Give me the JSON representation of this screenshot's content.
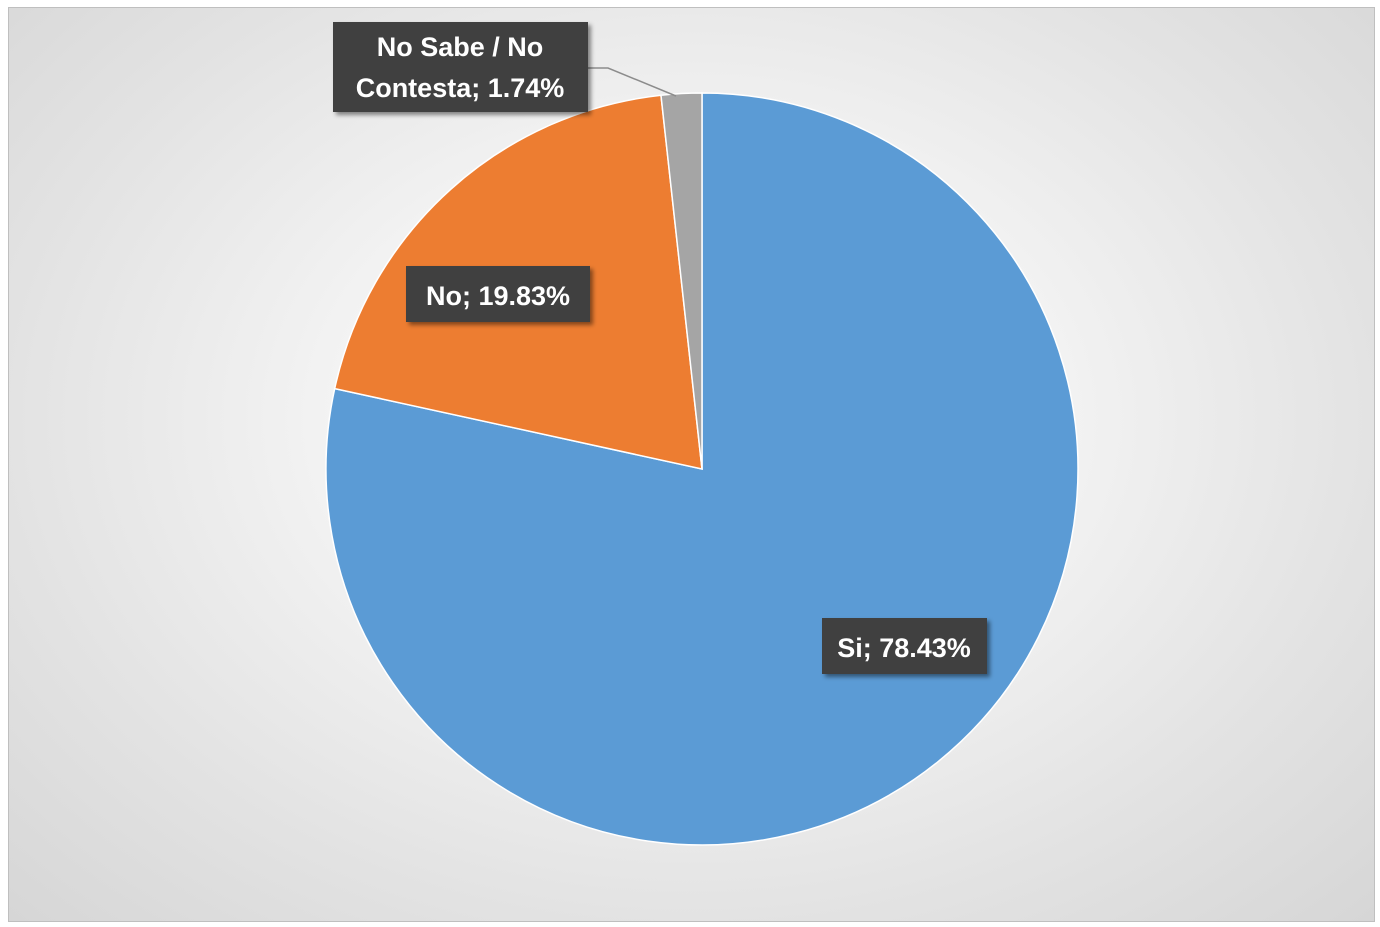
{
  "chart_data": {
    "type": "pie",
    "slices": [
      {
        "label": "Si",
        "value": 78.43,
        "data_label": "Si; 78.43%",
        "color": "#5b9bd5"
      },
      {
        "label": "No",
        "value": 19.83,
        "data_label": "No; 19.83%",
        "color": "#ed7d31"
      },
      {
        "label": "No Sabe / No Contesta",
        "value": 1.74,
        "data_label_lines": [
          "No Sabe / No",
          "Contesta; 1.74%"
        ],
        "color": "#a5a5a5"
      }
    ],
    "title": "",
    "legend": "none",
    "start_angle": "12 o'clock, clockwise"
  }
}
